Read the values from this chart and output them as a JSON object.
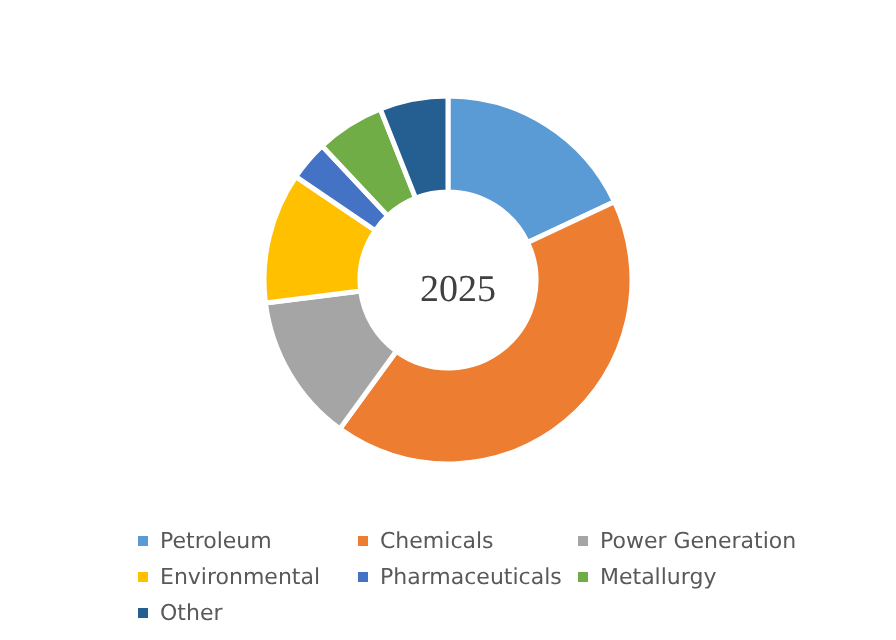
{
  "chart_data": {
    "type": "donut",
    "title": "2025",
    "categories": [
      "Petroleum",
      "Chemicals",
      "Power Generation",
      "Environmental",
      "Pharmaceuticals",
      "Metallurgy",
      "Other"
    ],
    "values": [
      18,
      42,
      13,
      11.5,
      3.5,
      6,
      6
    ],
    "colors": [
      "#5b9bd5",
      "#ed7d31",
      "#a5a5a5",
      "#ffc000",
      "#4472c4",
      "#70ad47",
      "#255e91"
    ],
    "legend": "bottom"
  }
}
